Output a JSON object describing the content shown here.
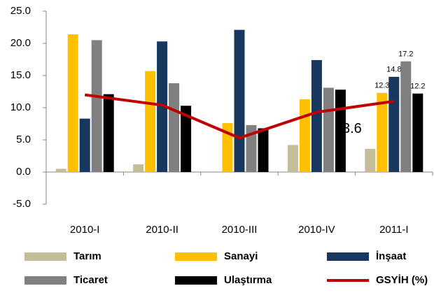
{
  "chart_data": {
    "type": "bar",
    "categories": [
      "2010-I",
      "2010-II",
      "2010-III",
      "2010-IV",
      "2011-I"
    ],
    "series": [
      {
        "name": "Tarım",
        "color": "#c4bd97",
        "values": [
          0.5,
          1.2,
          0,
          4.2,
          3.6
        ],
        "value_labels": [
          null,
          null,
          null,
          null,
          "3.6"
        ]
      },
      {
        "name": "Sanayi",
        "color": "#ffc000",
        "values": [
          21.4,
          15.7,
          7.6,
          11.3,
          12.3
        ],
        "value_labels": [
          null,
          null,
          null,
          null,
          "12.3"
        ]
      },
      {
        "name": "İnşaat",
        "color": "#17375e",
        "values": [
          8.3,
          20.3,
          22.1,
          17.4,
          14.8
        ],
        "value_labels": [
          null,
          null,
          null,
          null,
          "14.8"
        ]
      },
      {
        "name": "Ticaret",
        "color": "#808080",
        "values": [
          20.5,
          13.8,
          7.3,
          13.1,
          17.2
        ],
        "value_labels": [
          null,
          null,
          null,
          null,
          "17.2"
        ]
      },
      {
        "name": "Ulaştırma",
        "color": "#000000",
        "values": [
          12.1,
          10.3,
          6.8,
          12.8,
          12.2
        ],
        "value_labels": [
          null,
          null,
          null,
          null,
          "12.2"
        ]
      },
      {
        "name": "GSYİH (%)",
        "color": "#c00000",
        "type": "line",
        "values": [
          12.0,
          10.4,
          5.3,
          9.3,
          11.0
        ]
      }
    ],
    "ylim": [
      -5,
      25
    ],
    "yticks": [
      {
        "value": -5,
        "label": "-5.0"
      },
      {
        "value": 0,
        "label": "0.0"
      },
      {
        "value": 5,
        "label": "5.0"
      },
      {
        "value": 10,
        "label": "10.0"
      },
      {
        "value": 15,
        "label": "15.0"
      },
      {
        "value": 20,
        "label": "20.0"
      },
      {
        "value": 25,
        "label": "25.0"
      }
    ],
    "grid": false,
    "legend": "bottom"
  }
}
